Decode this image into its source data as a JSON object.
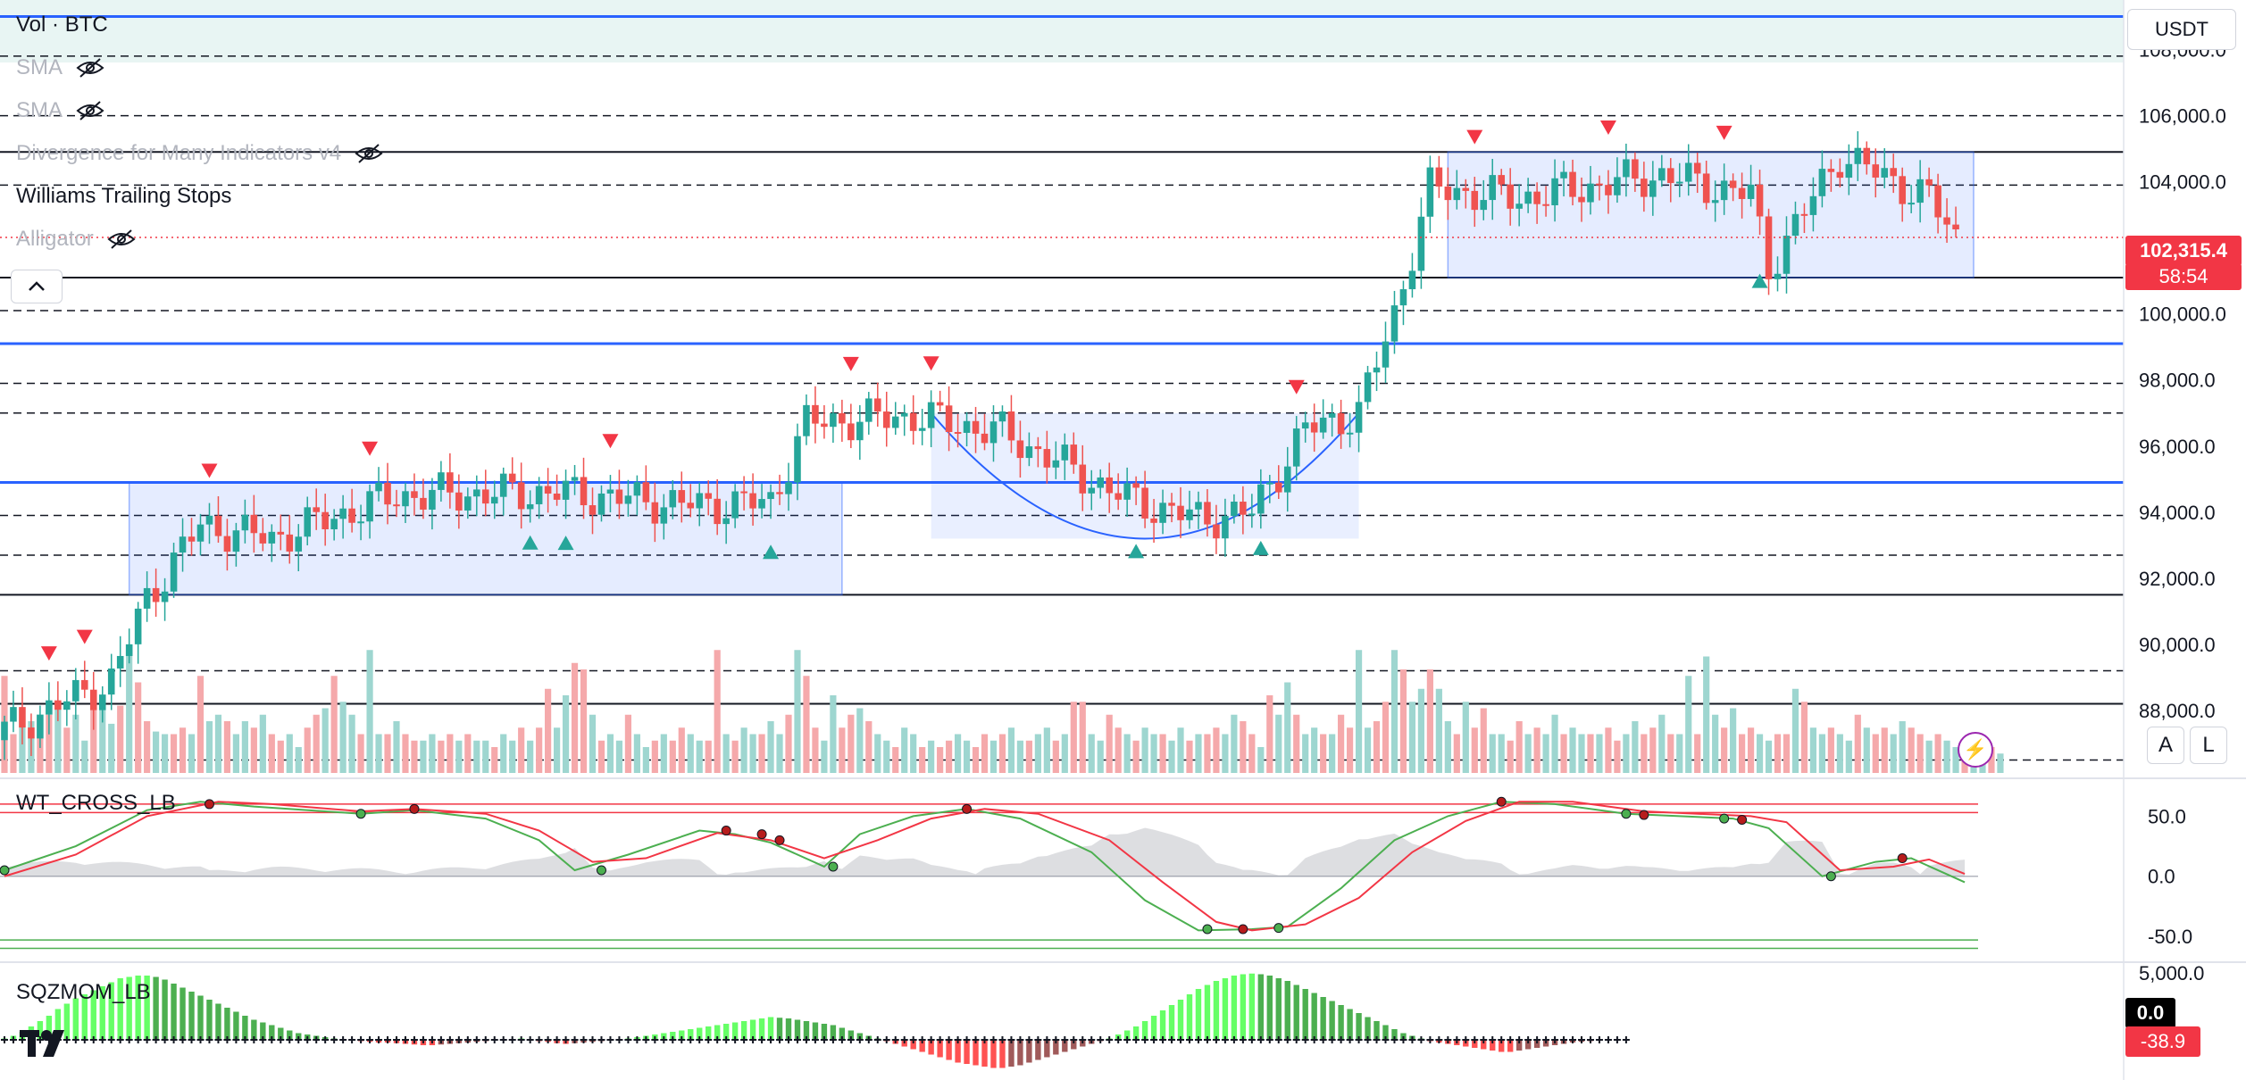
{
  "legend": {
    "vol": "Vol · BTC",
    "sma1": "SMA",
    "sma2": "SMA",
    "divergence": "Divergence for Many Indicators v4",
    "williams": "Williams Trailing Stops",
    "alligator": "Alligator"
  },
  "currency_label": "USDT",
  "scale_buttons": {
    "auto": "A",
    "log": "L"
  },
  "last_price": {
    "value": "102,315.4",
    "countdown": "58:54",
    "color": "#f23645"
  },
  "wt_label": "WT_CROSS_LB",
  "sqz_label": "SQZMOM_LB",
  "sqz_tags": {
    "zero": "0.0",
    "current": "-38.9"
  },
  "colors": {
    "up": "#26a69a",
    "down": "#ef5350",
    "vol_up": "#9ed6d0",
    "vol_down": "#f5a9ab",
    "resistance_blue": "#2962ff",
    "wt1": "#4caf50",
    "wt2": "#f23645",
    "sqz_lime": "#66ff66",
    "sqz_green": "#4caf50",
    "sqz_red": "#ff5252",
    "sqz_maroon": "#a05a5a"
  },
  "chart_data": [
    {
      "type": "candlestick",
      "title": "",
      "ylim": [
        86000,
        109500
      ],
      "y_ticks": [
        "108,000.0",
        "106,000.0",
        "104,000.0",
        "102,000.0",
        "100,000.0",
        "98,000.0",
        "96,000.0",
        "94,000.0",
        "92,000.0",
        "90,000.0",
        "88,000.0"
      ],
      "y_tick_values": [
        108000,
        106000,
        104000,
        102000,
        100000,
        98000,
        96000,
        94000,
        92000,
        90000,
        88000
      ],
      "key_points": [
        {
          "bar": 0,
          "close": 87400
        },
        {
          "bar": 12,
          "close": 88900
        },
        {
          "bar": 16,
          "close": 91400
        },
        {
          "bar": 22,
          "close": 93600
        },
        {
          "bar": 30,
          "close": 93200
        },
        {
          "bar": 44,
          "close": 94500
        },
        {
          "bar": 62,
          "close": 94600
        },
        {
          "bar": 78,
          "close": 94200
        },
        {
          "bar": 86,
          "close": 94300
        },
        {
          "bar": 90,
          "close": 96700
        },
        {
          "bar": 102,
          "close": 96900
        },
        {
          "bar": 112,
          "close": 96400
        },
        {
          "bar": 126,
          "close": 94400
        },
        {
          "bar": 134,
          "close": 93800
        },
        {
          "bar": 140,
          "close": 94000
        },
        {
          "bar": 146,
          "close": 96500
        },
        {
          "bar": 152,
          "close": 97000
        },
        {
          "bar": 156,
          "close": 100000
        },
        {
          "bar": 160,
          "close": 103800
        },
        {
          "bar": 170,
          "close": 103500
        },
        {
          "bar": 186,
          "close": 104200
        },
        {
          "bar": 196,
          "close": 103600
        },
        {
          "bar": 198,
          "close": 101400
        },
        {
          "bar": 206,
          "close": 104800
        },
        {
          "bar": 216,
          "close": 103500
        },
        {
          "bar": 219,
          "close": 102315.4
        }
      ],
      "horizontal_levels_solid_blue": [
        109000,
        99100,
        94900
      ],
      "horizontal_levels_solid_black": [
        104900,
        101100,
        91500,
        88200
      ],
      "horizontal_levels_dashed": [
        107800,
        106000,
        103900,
        100100,
        97900,
        97000,
        93900,
        92700,
        89200,
        86500
      ],
      "ranges": [
        {
          "from_bar": 14,
          "to_bar": 94,
          "low": 91500,
          "high": 94900
        },
        {
          "from_bar": 162,
          "to_bar": 221,
          "low": 101100,
          "high": 104900
        }
      ],
      "cup": {
        "from_bar": 104,
        "to_bar": 152,
        "top": 97000,
        "bottom": 93200
      },
      "sell_signal_bars": [
        5,
        9,
        23,
        41,
        68,
        95,
        104,
        145,
        165,
        180,
        193
      ],
      "buy_signal_bars": [
        59,
        63,
        86,
        127,
        141,
        197
      ]
    },
    {
      "type": "bar",
      "title": "",
      "note": "volume histogram; heights relative",
      "values": [
        0.75,
        0.3,
        0.5,
        0.4,
        0.3,
        0.45,
        0.55,
        0.35,
        0.45,
        0.25,
        0.55,
        0.5,
        0.38,
        0.52,
        0.95,
        0.7,
        0.4,
        0.32,
        0.3,
        0.3,
        0.35,
        0.3,
        0.75,
        0.4,
        0.45,
        0.4,
        0.3,
        0.4,
        0.35,
        0.45,
        0.3,
        0.25,
        0.3,
        0.2,
        0.35,
        0.45,
        0.5,
        0.75,
        0.55,
        0.45,
        0.3,
        0.95,
        0.3,
        0.3,
        0.4,
        0.3,
        0.25,
        0.25,
        0.3,
        0.25,
        0.3,
        0.25,
        0.3,
        0.25,
        0.25,
        0.2,
        0.3,
        0.25,
        0.35,
        0.25,
        0.35,
        0.65,
        0.35,
        0.6,
        0.85,
        0.8,
        0.45,
        0.25,
        0.3,
        0.25,
        0.45,
        0.3,
        0.2,
        0.25,
        0.3,
        0.25,
        0.35,
        0.3,
        0.25,
        0.25,
        0.95,
        0.3,
        0.25,
        0.35,
        0.3,
        0.3,
        0.4,
        0.3,
        0.45,
        0.95,
        0.75,
        0.35,
        0.25,
        0.6,
        0.35,
        0.45,
        0.5,
        0.4,
        0.3,
        0.25,
        0.2,
        0.35,
        0.3,
        0.2,
        0.25,
        0.2,
        0.25,
        0.3,
        0.25,
        0.2,
        0.3,
        0.25,
        0.3,
        0.35,
        0.25,
        0.25,
        0.3,
        0.35,
        0.25,
        0.3,
        0.55,
        0.55,
        0.3,
        0.25,
        0.45,
        0.35,
        0.3,
        0.25,
        0.35,
        0.3,
        0.3,
        0.25,
        0.35,
        0.25,
        0.3,
        0.3,
        0.35,
        0.3,
        0.45,
        0.4,
        0.3,
        0.2,
        0.6,
        0.45,
        0.7,
        0.45,
        0.3,
        0.35,
        0.3,
        0.3,
        0.45,
        0.35,
        0.95,
        0.35,
        0.4,
        0.55,
        0.95,
        0.8,
        0.55,
        0.65,
        0.8,
        0.65,
        0.4,
        0.3,
        0.55,
        0.35,
        0.5,
        0.3,
        0.3,
        0.25,
        0.4,
        0.3,
        0.35,
        0.3,
        0.45,
        0.3,
        0.35,
        0.3,
        0.3,
        0.3,
        0.35,
        0.25,
        0.3,
        0.4,
        0.3,
        0.35,
        0.45,
        0.3,
        0.3,
        0.75,
        0.3,
        0.9,
        0.45,
        0.35,
        0.5,
        0.3,
        0.35,
        0.3,
        0.25,
        0.3,
        0.3,
        0.65,
        0.55,
        0.35,
        0.3,
        0.35,
        0.3,
        0.25,
        0.45,
        0.35,
        0.3,
        0.35,
        0.3,
        0.4,
        0.35,
        0.3,
        0.25,
        0.3,
        0.25,
        0.2,
        0.25,
        0.2,
        0.25,
        0.2,
        0.15
      ]
    },
    {
      "type": "line",
      "title": "WT_CROSS_LB",
      "y_ticks": [
        "50.0",
        "0.0",
        "-50.0"
      ],
      "y_tick_values": [
        50,
        0,
        -50
      ],
      "ylim": [
        -70,
        80
      ],
      "levels": {
        "ob1": 60,
        "ob2": 53,
        "os1": -53,
        "os2": -60
      },
      "series": [
        {
          "name": "",
          "points": [
            [
              0,
              5
            ],
            [
              8,
              25
            ],
            [
              16,
              55
            ],
            [
              22,
              62
            ],
            [
              28,
              58
            ],
            [
              40,
              52
            ],
            [
              46,
              55
            ],
            [
              54,
              48
            ],
            [
              60,
              30
            ],
            [
              64,
              5
            ],
            [
              70,
              18
            ],
            [
              78,
              38
            ],
            [
              82,
              35
            ],
            [
              86,
              28
            ],
            [
              92,
              8
            ],
            [
              96,
              35
            ],
            [
              102,
              50
            ],
            [
              108,
              56
            ],
            [
              114,
              48
            ],
            [
              122,
              20
            ],
            [
              128,
              -20
            ],
            [
              134,
              -45
            ],
            [
              140,
              -44
            ],
            [
              144,
              -42
            ],
            [
              150,
              -10
            ],
            [
              156,
              30
            ],
            [
              162,
              50
            ],
            [
              168,
              62
            ],
            [
              174,
              60
            ],
            [
              182,
              52
            ],
            [
              188,
              50
            ],
            [
              194,
              48
            ],
            [
              198,
              40
            ],
            [
              204,
              0
            ],
            [
              210,
              12
            ],
            [
              214,
              15
            ],
            [
              220,
              -5
            ]
          ]
        },
        {
          "name": "",
          "points": [
            [
              0,
              0
            ],
            [
              8,
              18
            ],
            [
              16,
              50
            ],
            [
              24,
              62
            ],
            [
              30,
              60
            ],
            [
              40,
              54
            ],
            [
              46,
              56
            ],
            [
              54,
              52
            ],
            [
              60,
              38
            ],
            [
              66,
              12
            ],
            [
              72,
              15
            ],
            [
              80,
              36
            ],
            [
              86,
              30
            ],
            [
              92,
              15
            ],
            [
              98,
              30
            ],
            [
              104,
              48
            ],
            [
              110,
              56
            ],
            [
              116,
              52
            ],
            [
              124,
              30
            ],
            [
              130,
              -5
            ],
            [
              136,
              -38
            ],
            [
              140,
              -45
            ],
            [
              146,
              -40
            ],
            [
              152,
              -18
            ],
            [
              158,
              20
            ],
            [
              164,
              46
            ],
            [
              170,
              62
            ],
            [
              176,
              62
            ],
            [
              184,
              54
            ],
            [
              190,
              52
            ],
            [
              196,
              50
            ],
            [
              200,
              45
            ],
            [
              206,
              5
            ],
            [
              212,
              8
            ],
            [
              216,
              14
            ],
            [
              220,
              2
            ]
          ]
        }
      ],
      "cross_dots": [
        [
          0,
          5,
          "green"
        ],
        [
          23,
          60,
          "red"
        ],
        [
          40,
          52,
          "green"
        ],
        [
          46,
          56,
          "red"
        ],
        [
          67,
          5,
          "green"
        ],
        [
          81,
          38,
          "red"
        ],
        [
          85,
          35,
          "red"
        ],
        [
          87,
          30,
          "red"
        ],
        [
          93,
          8,
          "green"
        ],
        [
          108,
          56,
          "red"
        ],
        [
          135,
          -44,
          "green"
        ],
        [
          139,
          -44,
          "red"
        ],
        [
          143,
          -43,
          "green"
        ],
        [
          168,
          62,
          "red"
        ],
        [
          182,
          52,
          "green"
        ],
        [
          184,
          51,
          "red"
        ],
        [
          193,
          48,
          "green"
        ],
        [
          195,
          47,
          "red"
        ],
        [
          205,
          0,
          "green"
        ],
        [
          213,
          15,
          "red"
        ]
      ]
    },
    {
      "type": "bar",
      "title": "SQZMOM_LB",
      "y_ticks": [
        "5,000.0"
      ],
      "y_tick_values": [
        5000
      ],
      "ylim": [
        -3000,
        5000
      ],
      "values": [
        100,
        300,
        600,
        1000,
        1400,
        1800,
        2300,
        2700,
        3100,
        3400,
        3700,
        4000,
        4300,
        4600,
        4700,
        4800,
        4800,
        4700,
        4500,
        4200,
        3900,
        3600,
        3300,
        3000,
        2700,
        2400,
        2100,
        1800,
        1500,
        1300,
        1100,
        900,
        700,
        500,
        400,
        300,
        200,
        100,
        50,
        -50,
        -100,
        -150,
        -200,
        -200,
        -250,
        -300,
        -350,
        -400,
        -400,
        -350,
        -300,
        -250,
        -200,
        -150,
        -100,
        -50,
        0,
        50,
        100,
        -50,
        -100,
        -150,
        -250,
        -300,
        -250,
        -200,
        -150,
        -100,
        -50,
        0,
        100,
        200,
        300,
        400,
        500,
        600,
        700,
        800,
        900,
        1000,
        1100,
        1200,
        1300,
        1400,
        1500,
        1600,
        1700,
        1650,
        1600,
        1500,
        1400,
        1300,
        1200,
        1100,
        900,
        700,
        500,
        300,
        100,
        -100,
        -300,
        -500,
        -700,
        -900,
        -1100,
        -1300,
        -1500,
        -1700,
        -1800,
        -1900,
        -2000,
        -2100,
        -2100,
        -2000,
        -1900,
        -1700,
        -1500,
        -1300,
        -1100,
        -900,
        -700,
        -500,
        -300,
        -100,
        100,
        400,
        700,
        1000,
        1400,
        1800,
        2200,
        2600,
        3000,
        3400,
        3800,
        4100,
        4400,
        4600,
        4800,
        4900,
        4950,
        4900,
        4800,
        4600,
        4400,
        4100,
        3800,
        3500,
        3200,
        2900,
        2600,
        2300,
        2000,
        1700,
        1400,
        1100,
        800,
        500,
        300,
        100,
        -100,
        -200,
        -300,
        -400,
        -500,
        -600,
        -700,
        -800,
        -900,
        -900,
        -800,
        -700,
        -600,
        -500,
        -400,
        -300,
        -200,
        -150,
        -100,
        -50,
        0,
        -50,
        -39
      ]
    }
  ]
}
